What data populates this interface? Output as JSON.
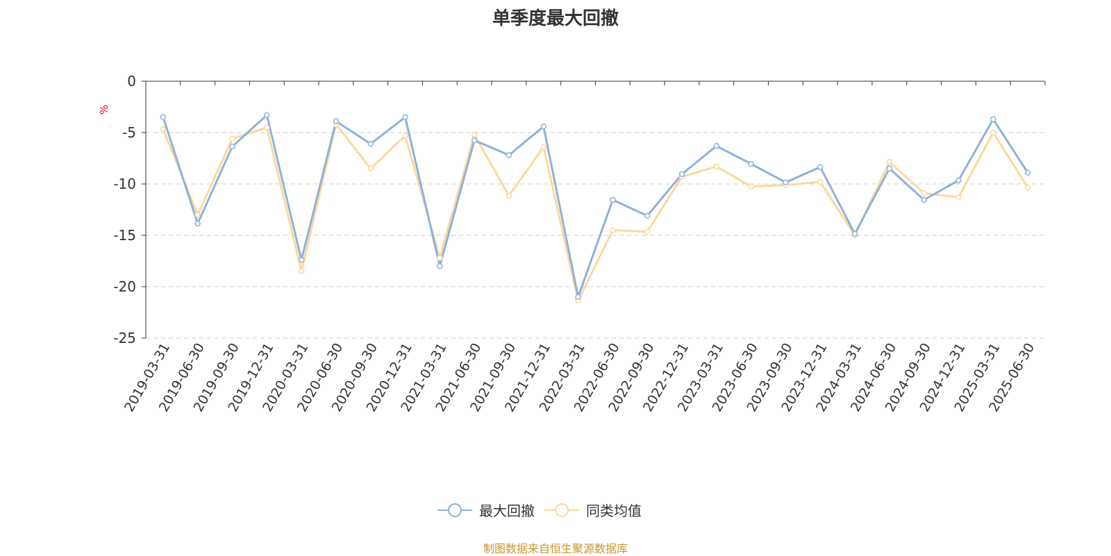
{
  "chart_data": {
    "type": "line",
    "title": "单季度最大回撤",
    "ylabel": "%",
    "ylim": [
      -25,
      0
    ],
    "yticks": [
      0,
      -5,
      -10,
      -15,
      -20,
      -25
    ],
    "grid": true,
    "legend_position": "bottom",
    "categories": [
      "2019-03-31",
      "2019-06-30",
      "2019-09-30",
      "2019-12-31",
      "2020-03-31",
      "2020-06-30",
      "2020-09-30",
      "2020-12-31",
      "2021-03-31",
      "2021-06-30",
      "2021-09-30",
      "2021-12-31",
      "2022-03-31",
      "2022-06-30",
      "2022-09-30",
      "2022-12-31",
      "2023-03-31",
      "2023-06-30",
      "2023-09-30",
      "2023-12-31",
      "2024-03-31",
      "2024-06-30",
      "2024-09-30",
      "2024-12-31",
      "2025-03-31",
      "2025-06-30"
    ],
    "series": [
      {
        "name": "最大回撤",
        "color": "#8eb0dd",
        "values": [
          -3.5,
          -13.85,
          -6.35,
          -3.3,
          -17.4,
          -3.9,
          -6.1,
          -3.5,
          -18.0,
          -5.75,
          -7.2,
          -4.4,
          -21.0,
          -11.55,
          -13.1,
          -9.05,
          -6.3,
          -8.05,
          -9.85,
          -8.35,
          -14.85,
          -8.5,
          -11.55,
          -9.65,
          -3.7,
          -8.9
        ]
      },
      {
        "name": "同类均值",
        "color": "#fdd89a",
        "values": [
          -4.65,
          -13.0,
          -5.6,
          -4.5,
          -18.5,
          -4.2,
          -8.5,
          -5.3,
          -17.2,
          -5.2,
          -11.15,
          -6.4,
          -21.35,
          -14.5,
          -14.65,
          -9.3,
          -8.3,
          -10.25,
          -10.1,
          -9.8,
          -15.0,
          -7.85,
          -10.9,
          -11.3,
          -5.0,
          -10.35
        ]
      }
    ]
  },
  "footer": "制图数据来自恒生聚源数据库"
}
